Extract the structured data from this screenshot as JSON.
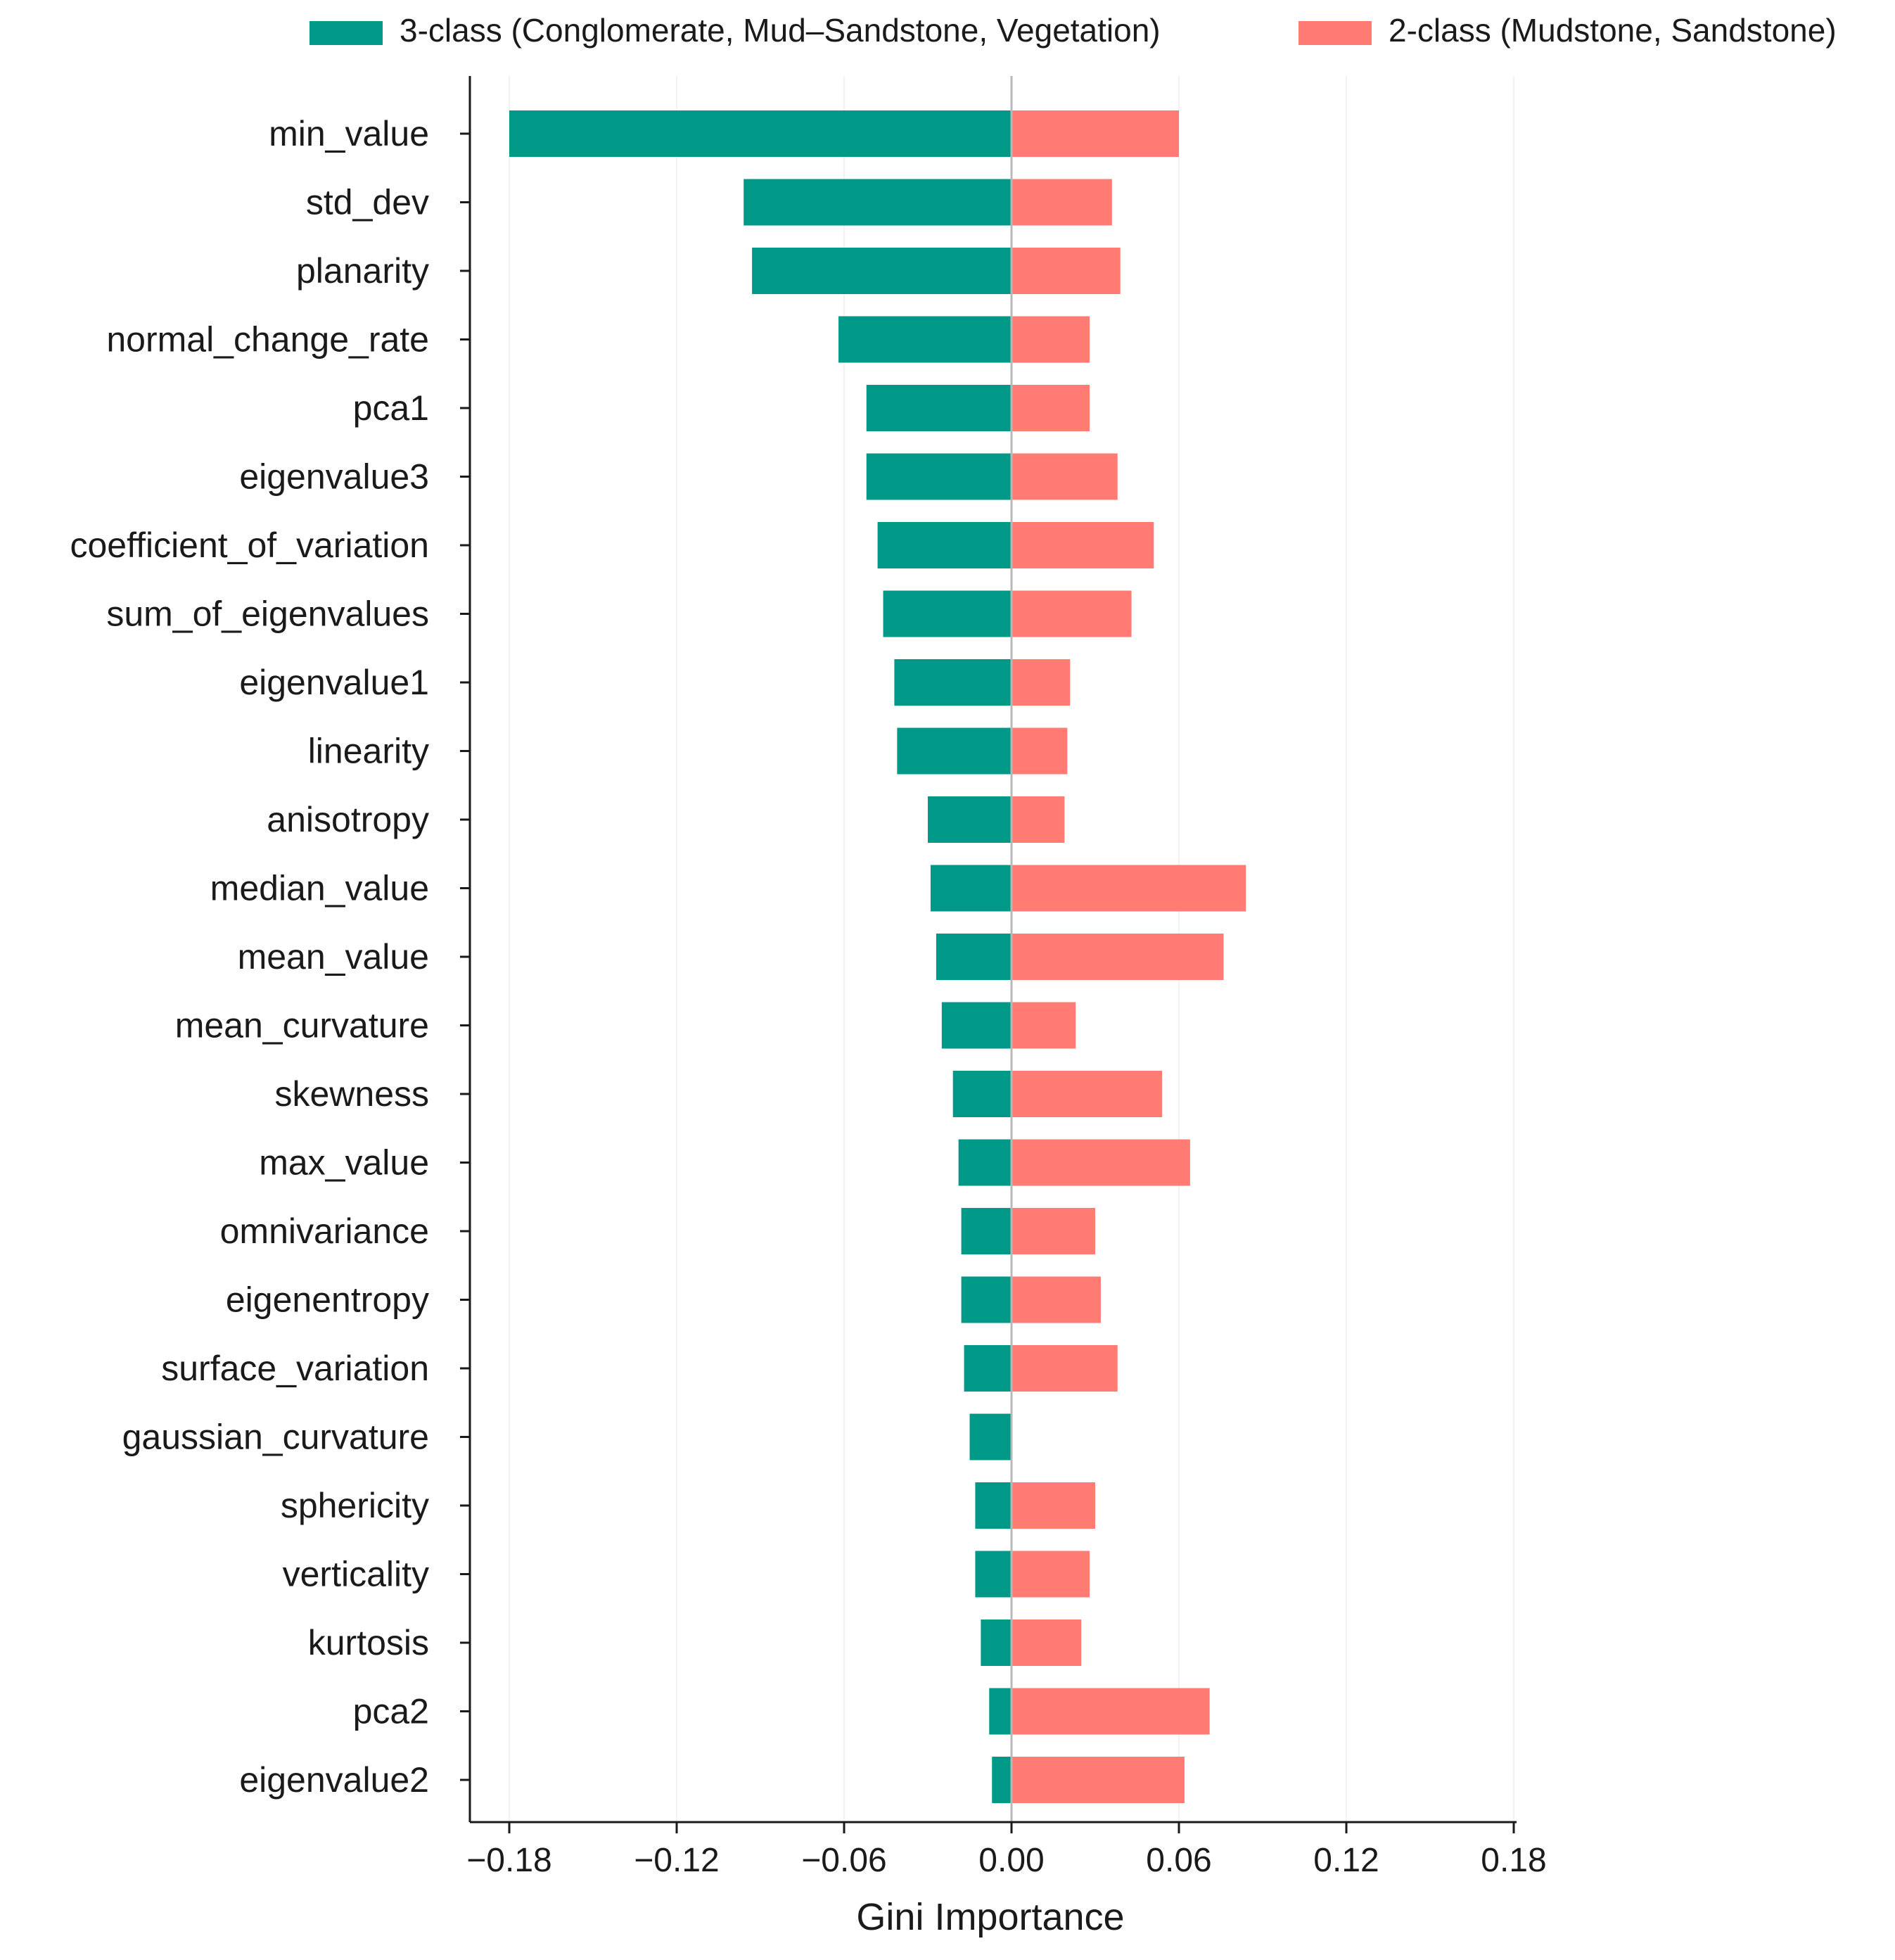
{
  "chart_data": {
    "type": "bar",
    "orientation": "horizontal",
    "xlabel": "Gini Importance",
    "ylabel": "",
    "xlim": [
      -0.19,
      0.18
    ],
    "xticks": [
      -0.18,
      -0.12,
      -0.06,
      0.0,
      0.06,
      0.12,
      0.18
    ],
    "xtick_labels": [
      "−0.18",
      "−0.12",
      "−0.06",
      "0.00",
      "0.06",
      "0.12",
      "0.18"
    ],
    "legend_position": "top",
    "categories": [
      "min_value",
      "std_dev",
      "planarity",
      "normal_change_rate",
      "pca1",
      "eigenvalue3",
      "coefficient_of_variation",
      "sum_of_eigenvalues",
      "eigenvalue1",
      "linearity",
      "anisotropy",
      "median_value",
      "mean_value",
      "mean_curvature",
      "skewness",
      "max_value",
      "omnivariance",
      "eigenentropy",
      "surface_variation",
      "gaussian_curvature",
      "sphericity",
      "verticality",
      "kurtosis",
      "pca2",
      "eigenvalue2"
    ],
    "series": [
      {
        "name": "3-class (Conglomerate, Mud–Sandstone, Vegetation)",
        "color": "#009988",
        "values": [
          -0.18,
          -0.096,
          -0.093,
          -0.062,
          -0.052,
          -0.052,
          -0.048,
          -0.046,
          -0.042,
          -0.041,
          -0.03,
          -0.029,
          -0.027,
          -0.025,
          -0.021,
          -0.019,
          -0.018,
          -0.018,
          -0.017,
          -0.015,
          -0.013,
          -0.013,
          -0.011,
          -0.008,
          -0.007
        ]
      },
      {
        "name": "2-class (Mudstone, Sandstone)",
        "color": "#FF7B74",
        "values": [
          0.06,
          0.036,
          0.039,
          0.028,
          0.028,
          0.038,
          0.051,
          0.043,
          0.021,
          0.02,
          0.019,
          0.084,
          0.076,
          0.023,
          0.054,
          0.064,
          0.03,
          0.032,
          0.038,
          0.0,
          0.03,
          0.028,
          0.025,
          0.071,
          0.062
        ]
      }
    ]
  }
}
